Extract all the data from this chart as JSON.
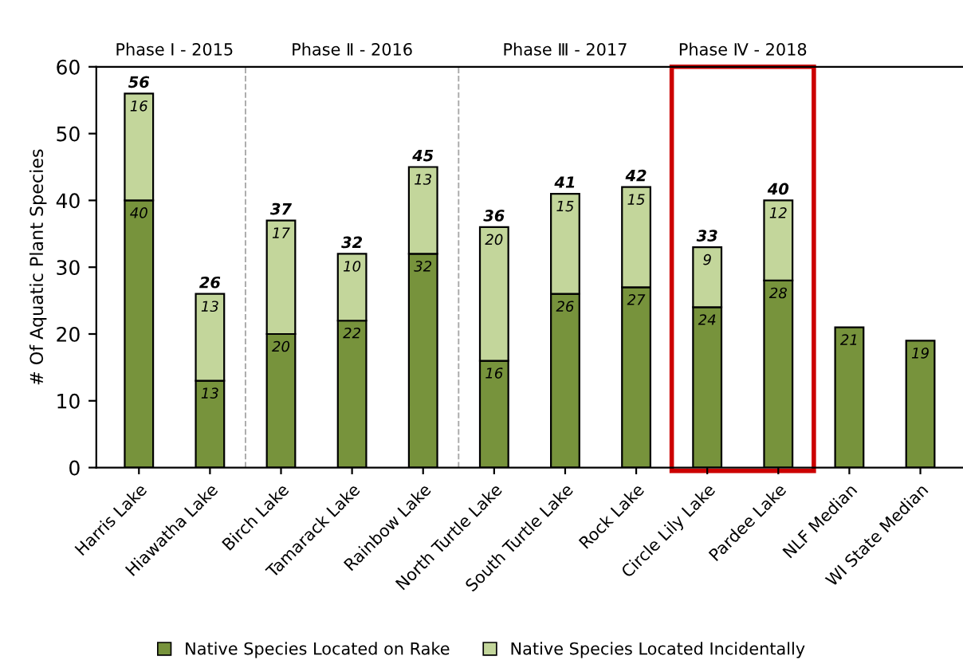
{
  "chart_data": {
    "type": "bar",
    "stacked": true,
    "ylabel": "# Of Aquatic Plant Species",
    "categories": [
      "Harris Lake",
      "Hiawatha Lake",
      "Birch Lake",
      "Tamarack Lake",
      "Rainbow Lake",
      "North Turtle Lake",
      "South Turtle Lake",
      "Rock Lake",
      "Circle Lily Lake",
      "Pardee Lake",
      "NLF Median",
      "WI State Median"
    ],
    "series": [
      {
        "name": "Native Species Located on Rake",
        "color": "#77933c",
        "values": [
          40,
          13,
          20,
          22,
          32,
          16,
          26,
          27,
          24,
          28,
          21,
          19
        ]
      },
      {
        "name": "Native Species Located Incidentally",
        "color": "#c3d69b",
        "values": [
          16,
          13,
          17,
          10,
          13,
          20,
          15,
          15,
          9,
          12,
          null,
          null
        ]
      }
    ],
    "totals": [
      "56",
      "26",
      "37",
      "32",
      "45",
      "36",
      "41",
      "42",
      "33",
      "40",
      null,
      null
    ],
    "data_labels": true,
    "annotations": [
      "Phase I - 2015",
      "Phase Ⅱ - 2016",
      "Phase Ⅲ - 2017",
      "Phase Ⅳ - 2018"
    ],
    "ylim": [
      0,
      60
    ],
    "yticks": [
      0,
      10,
      20,
      30,
      40,
      50,
      60
    ],
    "grid": false,
    "legend": "bottom"
  }
}
